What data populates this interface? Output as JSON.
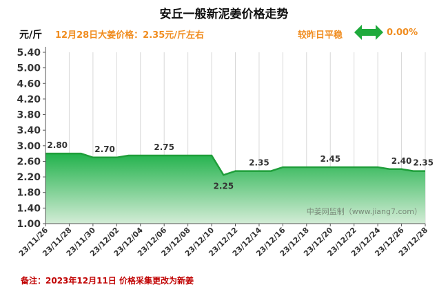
{
  "title": "安丘一般新泥姜价格走势",
  "unit_label": "元/斤",
  "headline": "12月28日大姜价格：2.35元/斤左右",
  "trend_text": "较昨日平稳",
  "trend_pct": "0.00%",
  "watermark": "中姜网监制（www.jiang7.com）",
  "note": "备注：2023年12月11日 价格采集更改为新姜",
  "colors": {
    "title": "#111111",
    "accent_orange": "#f08c1e",
    "arrow_green": "#1faa3c",
    "line_green": "#1f9e3a",
    "area_top": "#22b24c",
    "area_bottom": "#d3ecd6",
    "note_red": "#c00000"
  },
  "chart_data": {
    "type": "area",
    "ylim": [
      1.0,
      5.4
    ],
    "yticks": [
      "1.00",
      "1.40",
      "1.80",
      "2.20",
      "2.60",
      "3.00",
      "3.40",
      "3.80",
      "4.20",
      "4.60",
      "5.00",
      "5.40"
    ],
    "xticks": [
      "23/11/26",
      "23/11/28",
      "23/11/30",
      "23/12/02",
      "23/12/04",
      "23/12/06",
      "23/12/08",
      "23/12/10",
      "23/12/12",
      "23/12/14",
      "23/12/16",
      "23/12/18",
      "23/12/20",
      "23/12/22",
      "23/12/24",
      "23/12/26",
      "23/12/28"
    ],
    "x": [
      "23/11/26",
      "23/11/27",
      "23/11/28",
      "23/11/29",
      "23/11/30",
      "23/12/01",
      "23/12/02",
      "23/12/03",
      "23/12/04",
      "23/12/05",
      "23/12/06",
      "23/12/07",
      "23/12/08",
      "23/12/09",
      "23/12/10",
      "23/12/11",
      "23/12/12",
      "23/12/13",
      "23/12/14",
      "23/12/15",
      "23/12/16",
      "23/12/17",
      "23/12/18",
      "23/12/19",
      "23/12/20",
      "23/12/21",
      "23/12/22",
      "23/12/23",
      "23/12/24",
      "23/12/25",
      "23/12/26",
      "23/12/27",
      "23/12/28"
    ],
    "values": [
      2.8,
      2.8,
      2.8,
      2.8,
      2.7,
      2.7,
      2.7,
      2.75,
      2.75,
      2.75,
      2.75,
      2.75,
      2.75,
      2.75,
      2.75,
      2.25,
      2.35,
      2.35,
      2.35,
      2.35,
      2.45,
      2.45,
      2.45,
      2.45,
      2.45,
      2.45,
      2.45,
      2.45,
      2.45,
      2.4,
      2.4,
      2.35,
      2.35
    ],
    "data_labels": [
      {
        "x": "23/11/27",
        "y": 2.8,
        "text": "2.80"
      },
      {
        "x": "23/12/01",
        "y": 2.7,
        "text": "2.70"
      },
      {
        "x": "23/12/06",
        "y": 2.75,
        "text": "2.75"
      },
      {
        "x": "23/12/11",
        "y": 2.25,
        "text": "2.25"
      },
      {
        "x": "23/12/14",
        "y": 2.35,
        "text": "2.35"
      },
      {
        "x": "23/12/20",
        "y": 2.45,
        "text": "2.45"
      },
      {
        "x": "23/12/26",
        "y": 2.4,
        "text": "2.40"
      },
      {
        "x": "23/12/28",
        "y": 2.35,
        "text": "2.35"
      }
    ],
    "grid": "vertical"
  }
}
